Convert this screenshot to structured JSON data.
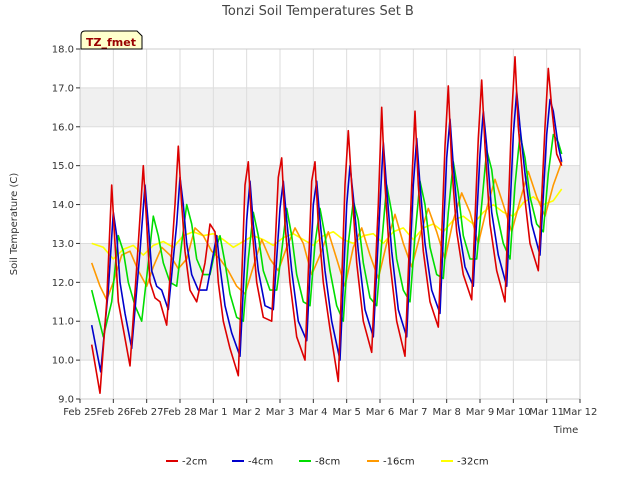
{
  "chart_data": {
    "type": "line",
    "title": "Tonzi Soil Temperatures Set B",
    "xlabel": "Time",
    "ylabel": "Soil Temperature (C)",
    "badge": "TZ_fmet",
    "ylim": [
      9.0,
      18.0
    ],
    "xlim": [
      0,
      15
    ],
    "yticks": [
      "9.0",
      "10.0",
      "11.0",
      "12.0",
      "13.0",
      "14.0",
      "15.0",
      "16.0",
      "17.0",
      "18.0"
    ],
    "xticks": [
      "Feb 25",
      "Feb 26",
      "Feb 27",
      "Feb 28",
      "Mar 1",
      "Mar 2",
      "Mar 3",
      "Mar 4",
      "Mar 5",
      "Mar 6",
      "Mar 7",
      "Mar 8",
      "Mar 9",
      "Mar 10",
      "Mar 11",
      "Mar 12"
    ],
    "grid": true,
    "legend_position": "bottom",
    "series": [
      {
        "name": "-2cm",
        "color": "#dd0000",
        "x": [
          0.35,
          0.6,
          0.8,
          0.95,
          1.05,
          1.15,
          1.3,
          1.5,
          1.75,
          1.9,
          2.0,
          2.1,
          2.25,
          2.4,
          2.6,
          2.85,
          2.95,
          3.05,
          3.15,
          3.3,
          3.5,
          3.75,
          3.9,
          4.05,
          4.15,
          4.3,
          4.5,
          4.75,
          4.95,
          5.05,
          5.15,
          5.3,
          5.5,
          5.75,
          5.95,
          6.05,
          6.15,
          6.3,
          6.5,
          6.75,
          6.95,
          7.05,
          7.15,
          7.3,
          7.5,
          7.75,
          7.95,
          8.05,
          8.15,
          8.3,
          8.5,
          8.75,
          8.95,
          9.05,
          9.15,
          9.3,
          9.5,
          9.75,
          9.95,
          10.05,
          10.15,
          10.3,
          10.5,
          10.75,
          10.95,
          11.05,
          11.15,
          11.3,
          11.5,
          11.75,
          11.95,
          12.05,
          12.15,
          12.3,
          12.5,
          12.75,
          12.95,
          13.05,
          13.15,
          13.3,
          13.5,
          13.75,
          13.95,
          14.05,
          14.15,
          14.3,
          14.45
        ],
        "y": [
          10.4,
          9.15,
          11.5,
          14.5,
          13.0,
          11.5,
          10.8,
          9.85,
          13.0,
          15.0,
          13.5,
          12.0,
          11.6,
          11.5,
          10.9,
          14.0,
          15.5,
          14.0,
          12.8,
          11.8,
          11.5,
          12.5,
          13.5,
          13.3,
          12.0,
          11.0,
          10.3,
          9.6,
          14.5,
          15.1,
          13.5,
          12.0,
          11.1,
          11.0,
          14.7,
          15.2,
          13.5,
          12.0,
          10.6,
          10.0,
          14.6,
          15.1,
          13.5,
          12.0,
          10.8,
          9.45,
          14.5,
          15.9,
          14.5,
          12.5,
          11.0,
          10.2,
          14.0,
          16.5,
          14.5,
          12.5,
          11.0,
          10.1,
          14.5,
          16.4,
          14.5,
          12.8,
          11.5,
          10.85,
          15.5,
          17.05,
          15.0,
          13.3,
          12.2,
          11.55,
          15.7,
          17.2,
          15.5,
          13.5,
          12.3,
          11.5,
          16.3,
          17.8,
          16.0,
          14.5,
          13.0,
          12.3,
          16.0,
          17.5,
          16.5,
          15.3,
          15.0
        ]
      },
      {
        "name": "-4cm",
        "color": "#0000cc",
        "x": [
          0.35,
          0.62,
          0.85,
          1.0,
          1.1,
          1.2,
          1.35,
          1.55,
          1.8,
          1.95,
          2.05,
          2.15,
          2.3,
          2.45,
          2.65,
          2.9,
          3.0,
          3.1,
          3.2,
          3.35,
          3.55,
          3.8,
          3.95,
          4.1,
          4.2,
          4.35,
          4.55,
          4.8,
          5.0,
          5.1,
          5.2,
          5.35,
          5.55,
          5.8,
          6.0,
          6.1,
          6.2,
          6.35,
          6.55,
          6.8,
          7.0,
          7.1,
          7.2,
          7.35,
          7.55,
          7.8,
          8.0,
          8.1,
          8.2,
          8.35,
          8.55,
          8.8,
          9.0,
          9.1,
          9.2,
          9.35,
          9.55,
          9.8,
          10.0,
          10.1,
          10.2,
          10.35,
          10.55,
          10.8,
          11.0,
          11.1,
          11.2,
          11.35,
          11.55,
          11.8,
          12.0,
          12.1,
          12.2,
          12.35,
          12.55,
          12.8,
          13.0,
          13.1,
          13.2,
          13.35,
          13.55,
          13.8,
          14.0,
          14.1,
          14.2,
          14.35,
          14.45
        ],
        "y": [
          10.9,
          9.7,
          11.8,
          13.8,
          13.2,
          12.0,
          11.2,
          10.3,
          12.8,
          14.5,
          13.5,
          12.3,
          11.9,
          11.8,
          11.3,
          13.5,
          14.7,
          14.0,
          13.0,
          12.2,
          11.8,
          11.8,
          12.5,
          13.2,
          12.4,
          11.4,
          10.7,
          10.1,
          13.6,
          14.6,
          13.5,
          12.3,
          11.4,
          11.3,
          13.9,
          14.6,
          13.6,
          12.3,
          11.0,
          10.5,
          14.0,
          14.6,
          13.6,
          12.3,
          11.0,
          10.0,
          14.0,
          15.0,
          14.2,
          12.8,
          11.3,
          10.6,
          14.0,
          15.6,
          14.4,
          12.8,
          11.3,
          10.6,
          14.5,
          15.7,
          14.5,
          13.0,
          11.8,
          11.2,
          15.2,
          16.2,
          15.0,
          13.5,
          12.4,
          11.9,
          15.3,
          16.4,
          15.5,
          13.8,
          12.7,
          11.9,
          15.8,
          16.9,
          16.0,
          14.8,
          13.5,
          12.7,
          15.8,
          16.7,
          16.4,
          15.5,
          15.1
        ]
      },
      {
        "name": "-8cm",
        "color": "#00dd00",
        "x": [
          0.35,
          0.7,
          0.95,
          1.15,
          1.3,
          1.45,
          1.65,
          1.85,
          2.05,
          2.2,
          2.35,
          2.5,
          2.7,
          2.9,
          3.05,
          3.2,
          3.35,
          3.5,
          3.7,
          3.9,
          4.05,
          4.2,
          4.35,
          4.5,
          4.7,
          4.9,
          5.05,
          5.2,
          5.35,
          5.5,
          5.7,
          5.9,
          6.05,
          6.2,
          6.35,
          6.5,
          6.7,
          6.9,
          7.05,
          7.2,
          7.35,
          7.5,
          7.7,
          7.9,
          8.05,
          8.2,
          8.35,
          8.5,
          8.7,
          8.9,
          9.05,
          9.2,
          9.35,
          9.5,
          9.7,
          9.9,
          10.05,
          10.2,
          10.35,
          10.5,
          10.7,
          10.9,
          11.05,
          11.2,
          11.35,
          11.5,
          11.7,
          11.9,
          12.05,
          12.2,
          12.35,
          12.5,
          12.7,
          12.9,
          13.05,
          13.2,
          13.35,
          13.5,
          13.7,
          13.9,
          14.05,
          14.2,
          14.35,
          14.45
        ],
        "y": [
          11.8,
          10.6,
          11.5,
          13.2,
          12.8,
          12.0,
          11.4,
          11.0,
          12.5,
          13.7,
          13.2,
          12.5,
          12.0,
          11.9,
          13.0,
          14.0,
          13.5,
          12.6,
          12.2,
          12.2,
          12.8,
          13.2,
          12.5,
          11.7,
          11.1,
          11.0,
          12.6,
          13.8,
          13.2,
          12.3,
          11.8,
          11.8,
          12.8,
          13.9,
          13.2,
          12.2,
          11.5,
          11.4,
          13.0,
          13.9,
          13.2,
          12.3,
          11.4,
          11.0,
          13.0,
          14.1,
          13.6,
          12.5,
          11.6,
          11.4,
          13.0,
          14.5,
          13.8,
          12.6,
          11.8,
          11.5,
          13.2,
          14.6,
          14.0,
          12.9,
          12.2,
          12.1,
          13.8,
          15.1,
          14.3,
          13.2,
          12.6,
          12.6,
          14.0,
          15.4,
          14.9,
          13.8,
          13.0,
          12.6,
          14.5,
          15.8,
          15.2,
          14.2,
          13.5,
          13.3,
          14.8,
          15.8,
          15.6,
          15.3
        ]
      },
      {
        "name": "-16cm",
        "color": "#ff9900",
        "x": [
          0.35,
          0.6,
          0.8,
          1.0,
          1.25,
          1.5,
          1.75,
          2.0,
          2.2,
          2.45,
          2.7,
          2.95,
          3.2,
          3.45,
          3.7,
          3.95,
          4.2,
          4.45,
          4.7,
          4.95,
          5.2,
          5.45,
          5.7,
          5.95,
          6.2,
          6.45,
          6.7,
          6.95,
          7.2,
          7.45,
          7.7,
          7.95,
          8.2,
          8.45,
          8.7,
          8.95,
          9.2,
          9.45,
          9.7,
          9.95,
          10.2,
          10.45,
          10.7,
          10.95,
          11.2,
          11.45,
          11.7,
          11.95,
          12.2,
          12.45,
          12.7,
          12.95,
          13.2,
          13.45,
          13.7,
          13.95,
          14.2,
          14.45
        ],
        "y": [
          12.5,
          11.9,
          11.55,
          12.0,
          12.7,
          12.8,
          12.3,
          11.9,
          12.4,
          12.9,
          12.7,
          12.35,
          12.6,
          13.4,
          13.2,
          12.8,
          12.6,
          12.3,
          11.9,
          11.7,
          12.4,
          13.1,
          12.6,
          12.3,
          12.9,
          13.4,
          13.0,
          12.2,
          12.7,
          13.3,
          12.6,
          11.9,
          12.9,
          13.4,
          12.7,
          12.1,
          13.0,
          13.75,
          13.0,
          12.4,
          13.2,
          13.9,
          13.3,
          12.6,
          13.6,
          14.3,
          13.8,
          13.0,
          13.9,
          14.65,
          14.0,
          13.3,
          14.1,
          14.85,
          14.2,
          13.7,
          14.5,
          15.1
        ]
      },
      {
        "name": "-32cm",
        "color": "#ffff00",
        "x": [
          0.35,
          0.7,
          1.0,
          1.3,
          1.6,
          1.9,
          2.2,
          2.5,
          2.8,
          3.1,
          3.4,
          3.7,
          4.0,
          4.3,
          4.6,
          4.9,
          5.2,
          5.5,
          5.8,
          6.1,
          6.4,
          6.7,
          7.0,
          7.3,
          7.6,
          7.9,
          8.2,
          8.5,
          8.8,
          9.1,
          9.4,
          9.7,
          10.0,
          10.3,
          10.6,
          10.9,
          11.2,
          11.5,
          11.8,
          12.1,
          12.4,
          12.7,
          13.0,
          13.3,
          13.6,
          13.9,
          14.2,
          14.45
        ],
        "y": [
          13.0,
          12.9,
          12.6,
          12.85,
          12.95,
          12.7,
          12.95,
          13.05,
          12.9,
          13.2,
          13.3,
          13.2,
          13.25,
          13.1,
          12.9,
          13.05,
          13.2,
          13.1,
          12.95,
          13.15,
          13.25,
          13.1,
          12.95,
          13.2,
          13.3,
          13.1,
          13.0,
          13.2,
          13.25,
          13.0,
          13.3,
          13.4,
          13.1,
          13.4,
          13.5,
          13.3,
          13.6,
          13.7,
          13.5,
          13.8,
          14.0,
          13.8,
          13.7,
          14.05,
          14.2,
          14.0,
          14.1,
          14.4
        ]
      }
    ]
  }
}
